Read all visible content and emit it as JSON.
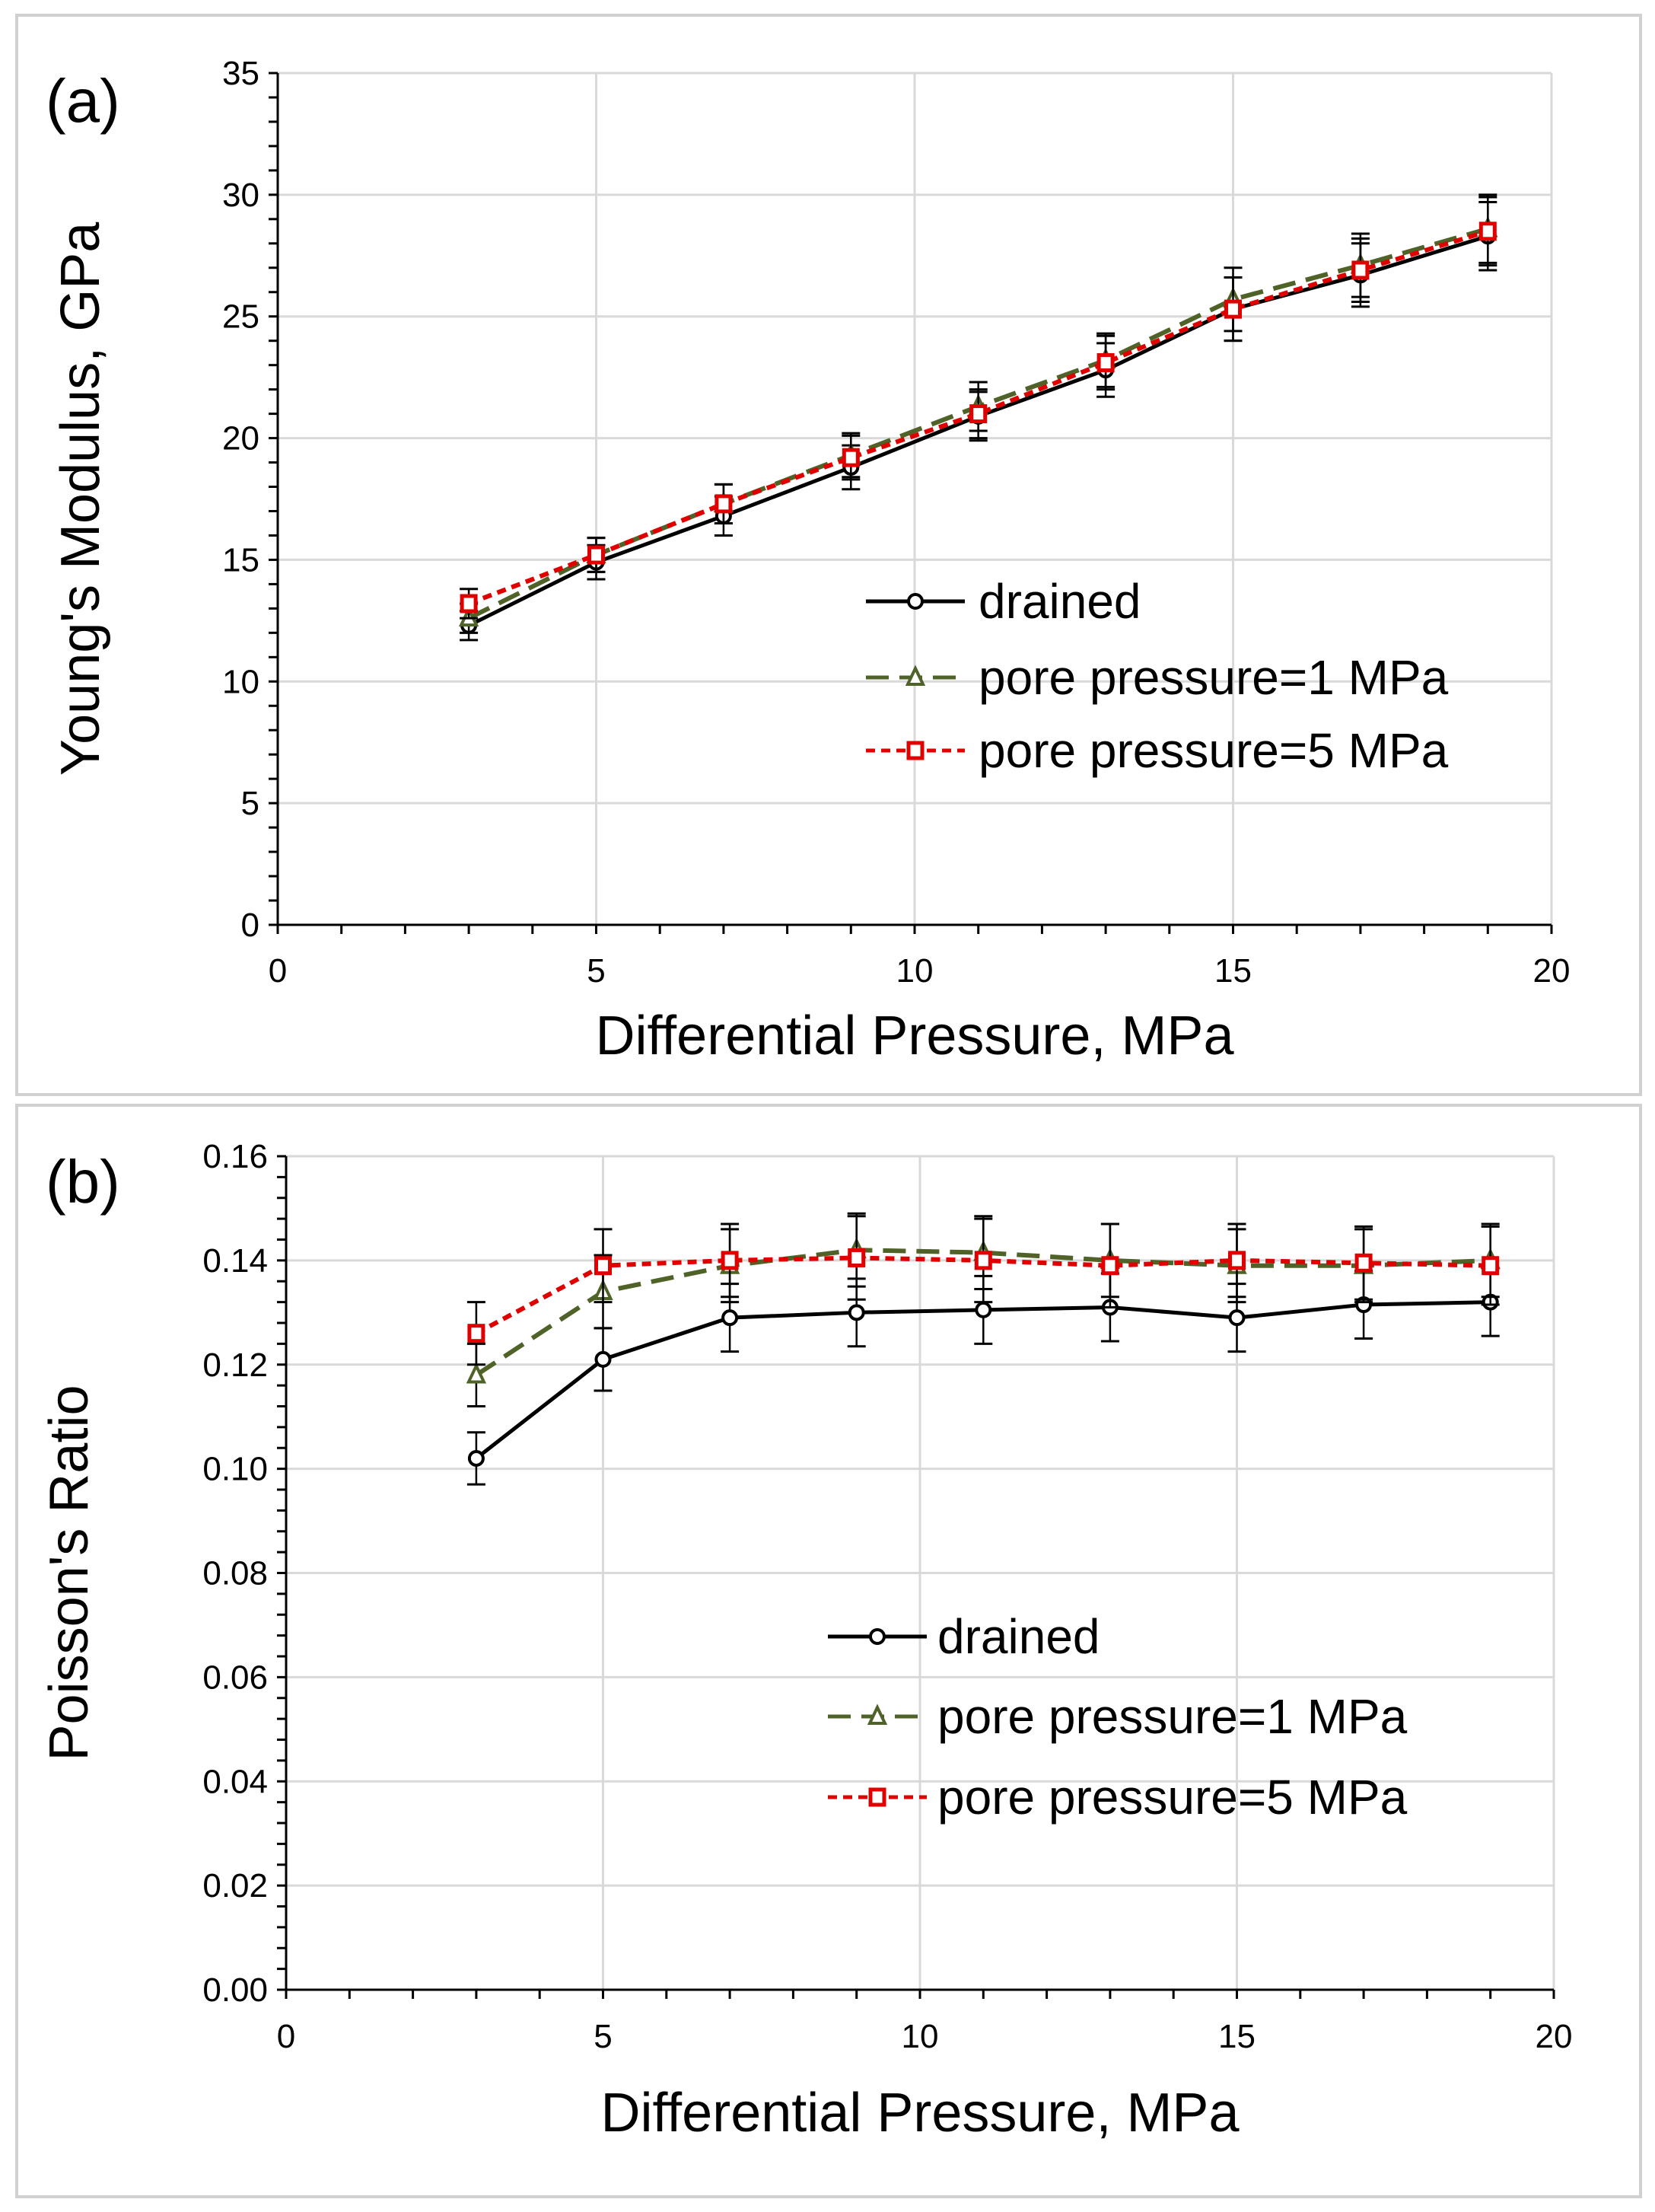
{
  "chart_data": [
    {
      "type": "line",
      "panel_label": "(a)",
      "xlabel": "Differential Pressure, MPa",
      "ylabel": "Young's Modulus, GPa",
      "xlim": [
        0,
        20
      ],
      "ylim": [
        0,
        35
      ],
      "xticks": [
        0,
        5,
        10,
        15,
        20
      ],
      "yticks": [
        0,
        5,
        10,
        15,
        20,
        25,
        30,
        35
      ],
      "grid": true,
      "legend_position": "center-right",
      "x": [
        3,
        5,
        7,
        9,
        11,
        13,
        15,
        17,
        19
      ],
      "series": [
        {
          "name": "drained",
          "color": "#000000",
          "dash": "solid",
          "marker": "circle",
          "values": [
            12.3,
            14.9,
            16.8,
            18.8,
            20.9,
            22.8,
            25.3,
            26.7,
            28.3
          ],
          "error": [
            0.6,
            0.7,
            0.8,
            0.9,
            1.0,
            1.1,
            1.3,
            1.3,
            1.4
          ]
        },
        {
          "name": "pore pressure=1 MPa",
          "color": "#4f6228",
          "dash": "long-dash",
          "marker": "triangle",
          "values": [
            12.6,
            15.2,
            17.3,
            19.3,
            21.3,
            23.2,
            25.7,
            27.1,
            28.6
          ],
          "error": [
            0.6,
            0.7,
            0.8,
            0.9,
            1.0,
            1.1,
            1.3,
            1.3,
            1.4
          ]
        },
        {
          "name": "pore pressure=5 MPa",
          "color": "#e00000",
          "dash": "short-dash",
          "marker": "square",
          "values": [
            13.2,
            15.2,
            17.3,
            19.2,
            21.0,
            23.1,
            25.3,
            26.9,
            28.5
          ],
          "error": [
            0.6,
            0.7,
            0.8,
            0.9,
            1.0,
            1.1,
            1.3,
            1.3,
            1.4
          ]
        }
      ]
    },
    {
      "type": "line",
      "panel_label": "(b)",
      "xlabel": "Differential Pressure, MPa",
      "ylabel": "Poisson's Ratio",
      "xlim": [
        0,
        20
      ],
      "ylim": [
        0,
        0.16
      ],
      "xticks": [
        0,
        5,
        10,
        15,
        20
      ],
      "yticks": [
        "0.00",
        "0.02",
        "0.04",
        "0.06",
        "0.08",
        "0.10",
        "0.12",
        "0.14",
        "0.16"
      ],
      "grid": true,
      "legend_position": "center-right",
      "x": [
        3,
        5,
        7,
        9,
        11,
        13,
        15,
        17,
        19
      ],
      "series": [
        {
          "name": "drained",
          "color": "#000000",
          "dash": "solid",
          "marker": "circle",
          "values": [
            0.102,
            0.121,
            0.129,
            0.13,
            0.1305,
            0.131,
            0.129,
            0.1315,
            0.132
          ],
          "error": [
            0.005,
            0.006,
            0.0065,
            0.0065,
            0.0065,
            0.0065,
            0.0065,
            0.0065,
            0.0065
          ]
        },
        {
          "name": "pore pressure=1 MPa",
          "color": "#4f6228",
          "dash": "long-dash",
          "marker": "triangle",
          "values": [
            0.118,
            0.134,
            0.139,
            0.142,
            0.1415,
            0.14,
            0.139,
            0.139,
            0.14
          ],
          "error": [
            0.006,
            0.007,
            0.007,
            0.007,
            0.007,
            0.007,
            0.007,
            0.007,
            0.007
          ]
        },
        {
          "name": "pore pressure=5 MPa",
          "color": "#e00000",
          "dash": "short-dash",
          "marker": "square",
          "values": [
            0.126,
            0.139,
            0.14,
            0.1405,
            0.14,
            0.139,
            0.14,
            0.1395,
            0.139
          ],
          "error": [
            0.006,
            0.007,
            0.007,
            0.008,
            0.008,
            0.008,
            0.007,
            0.007,
            0.0075
          ]
        }
      ]
    }
  ]
}
